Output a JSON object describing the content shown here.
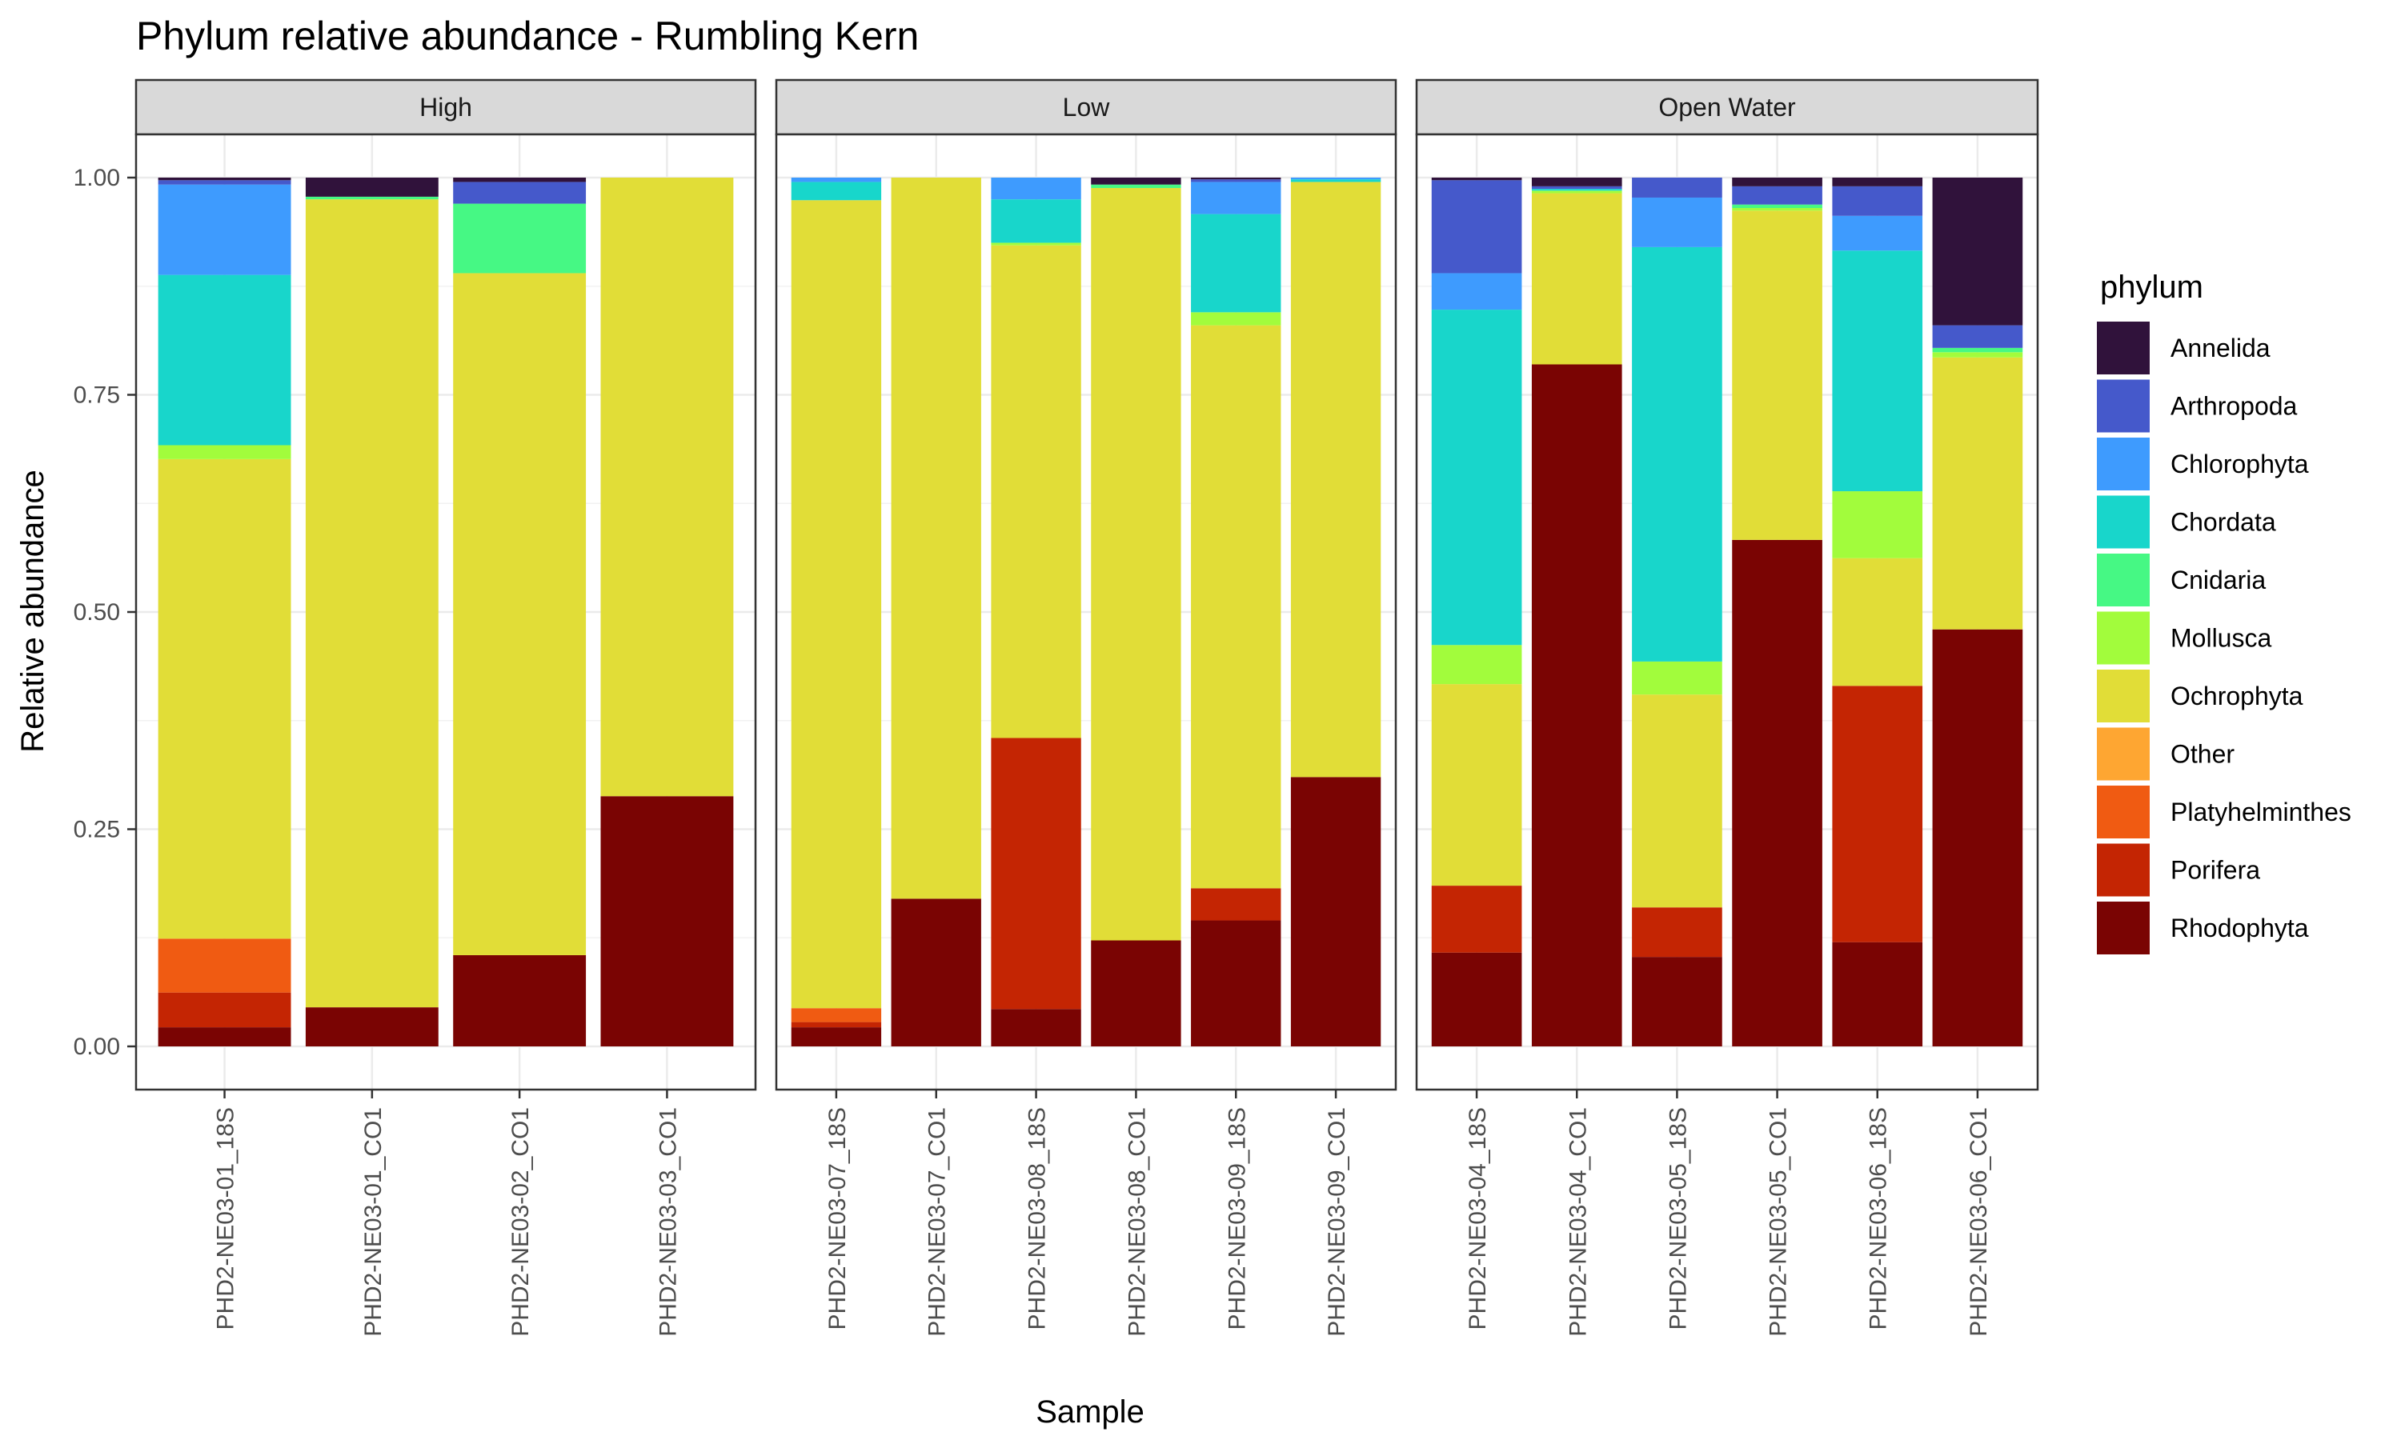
{
  "chart_data": {
    "type": "bar",
    "stacked": true,
    "faceted": true,
    "title": "Phylum relative abundance - Rumbling Kern",
    "xlabel": "Sample",
    "ylabel": "Relative abundance",
    "ylim": [
      0,
      1
    ],
    "yticks": [
      "0.00",
      "0.25",
      "0.50",
      "0.75",
      "1.00"
    ],
    "grid": true,
    "legend": {
      "title": "phylum",
      "position": "right",
      "entries": [
        "Annelida",
        "Arthropoda",
        "Chlorophyta",
        "Chordata",
        "Cnidaria",
        "Mollusca",
        "Ochrophyta",
        "Other",
        "Platyhelminthes",
        "Porifera",
        "Rhodophyta"
      ],
      "colors": [
        "#30123B",
        "#4559CB",
        "#3E9BFE",
        "#18D6CB",
        "#46F884",
        "#A2FC3C",
        "#E1DD37",
        "#FEA632",
        "#F05B12",
        "#C42503",
        "#7A0403"
      ]
    },
    "stack_order": [
      "Rhodophyta",
      "Porifera",
      "Platyhelminthes",
      "Other",
      "Ochrophyta",
      "Mollusca",
      "Cnidaria",
      "Chordata",
      "Chlorophyta",
      "Arthropoda",
      "Annelida"
    ],
    "panels": [
      {
        "label": "High",
        "samples": [
          {
            "name": "PHD2-NE03-01_18S",
            "values": {
              "Rhodophyta": 0.022,
              "Porifera": 0.04,
              "Platyhelminthes": 0.062,
              "Other": 0.0,
              "Ochrophyta": 0.552,
              "Mollusca": 0.016,
              "Cnidaria": 0.0,
              "Chordata": 0.196,
              "Chlorophyta": 0.104,
              "Arthropoda": 0.005,
              "Annelida": 0.003
            }
          },
          {
            "name": "PHD2-NE03-01_CO1",
            "values": {
              "Rhodophyta": 0.045,
              "Porifera": 0.0,
              "Platyhelminthes": 0.0,
              "Other": 0.0,
              "Ochrophyta": 0.93,
              "Mollusca": 0.0,
              "Cnidaria": 0.003,
              "Chordata": 0.0,
              "Chlorophyta": 0.0,
              "Arthropoda": 0.0,
              "Annelida": 0.022
            }
          },
          {
            "name": "PHD2-NE03-02_CO1",
            "values": {
              "Rhodophyta": 0.105,
              "Porifera": 0.0,
              "Platyhelminthes": 0.0,
              "Other": 0.0,
              "Ochrophyta": 0.785,
              "Mollusca": 0.0,
              "Cnidaria": 0.08,
              "Chordata": 0.0,
              "Chlorophyta": 0.0,
              "Arthropoda": 0.025,
              "Annelida": 0.005
            }
          },
          {
            "name": "PHD2-NE03-03_CO1",
            "values": {
              "Rhodophyta": 0.288,
              "Porifera": 0.0,
              "Platyhelminthes": 0.0,
              "Other": 0.0,
              "Ochrophyta": 0.712,
              "Mollusca": 0.0,
              "Cnidaria": 0.0,
              "Chordata": 0.0,
              "Chlorophyta": 0.0,
              "Arthropoda": 0.0,
              "Annelida": 0.0
            }
          }
        ]
      },
      {
        "label": "Low",
        "samples": [
          {
            "name": "PHD2-NE03-07_18S",
            "values": {
              "Rhodophyta": 0.022,
              "Porifera": 0.006,
              "Platyhelminthes": 0.016,
              "Other": 0.0,
              "Ochrophyta": 0.93,
              "Mollusca": 0.0,
              "Cnidaria": 0.0,
              "Chordata": 0.021,
              "Chlorophyta": 0.005,
              "Arthropoda": 0.0,
              "Annelida": 0.0
            }
          },
          {
            "name": "PHD2-NE03-07_CO1",
            "values": {
              "Rhodophyta": 0.17,
              "Porifera": 0.0,
              "Platyhelminthes": 0.0,
              "Other": 0.0,
              "Ochrophyta": 0.83,
              "Mollusca": 0.0,
              "Cnidaria": 0.0,
              "Chordata": 0.0,
              "Chlorophyta": 0.0,
              "Arthropoda": 0.0,
              "Annelida": 0.0
            }
          },
          {
            "name": "PHD2-NE03-08_18S",
            "values": {
              "Rhodophyta": 0.043,
              "Porifera": 0.312,
              "Platyhelminthes": 0.0,
              "Other": 0.0,
              "Ochrophyta": 0.567,
              "Mollusca": 0.003,
              "Cnidaria": 0.0,
              "Chordata": 0.05,
              "Chlorophyta": 0.025,
              "Arthropoda": 0.0,
              "Annelida": 0.0
            }
          },
          {
            "name": "PHD2-NE03-08_CO1",
            "values": {
              "Rhodophyta": 0.122,
              "Porifera": 0.0,
              "Platyhelminthes": 0.0,
              "Other": 0.0,
              "Ochrophyta": 0.866,
              "Mollusca": 0.0,
              "Cnidaria": 0.004,
              "Chordata": 0.0,
              "Chlorophyta": 0.0,
              "Arthropoda": 0.0,
              "Annelida": 0.008
            }
          },
          {
            "name": "PHD2-NE03-09_18S",
            "values": {
              "Rhodophyta": 0.145,
              "Porifera": 0.037,
              "Platyhelminthes": 0.0,
              "Other": 0.0,
              "Ochrophyta": 0.648,
              "Mollusca": 0.015,
              "Cnidaria": 0.0,
              "Chordata": 0.113,
              "Chlorophyta": 0.037,
              "Arthropoda": 0.003,
              "Annelida": 0.002
            }
          },
          {
            "name": "PHD2-NE03-09_CO1",
            "values": {
              "Rhodophyta": 0.31,
              "Porifera": 0.0,
              "Platyhelminthes": 0.0,
              "Other": 0.0,
              "Ochrophyta": 0.685,
              "Mollusca": 0.0,
              "Cnidaria": 0.0,
              "Chordata": 0.003,
              "Chlorophyta": 0.002,
              "Arthropoda": 0.0,
              "Annelida": 0.0
            }
          }
        ]
      },
      {
        "label": "Open Water",
        "samples": [
          {
            "name": "PHD2-NE03-04_18S",
            "values": {
              "Rhodophyta": 0.108,
              "Porifera": 0.077,
              "Platyhelminthes": 0.0,
              "Other": 0.0,
              "Ochrophyta": 0.232,
              "Mollusca": 0.045,
              "Cnidaria": 0.0,
              "Chordata": 0.386,
              "Chlorophyta": 0.042,
              "Arthropoda": 0.107,
              "Annelida": 0.003
            }
          },
          {
            "name": "PHD2-NE03-04_CO1",
            "values": {
              "Rhodophyta": 0.785,
              "Porifera": 0.0,
              "Platyhelminthes": 0.0,
              "Other": 0.0,
              "Ochrophyta": 0.197,
              "Mollusca": 0.003,
              "Cnidaria": 0.0,
              "Chordata": 0.002,
              "Chlorophyta": 0.0,
              "Arthropoda": 0.003,
              "Annelida": 0.01
            }
          },
          {
            "name": "PHD2-NE03-05_18S",
            "values": {
              "Rhodophyta": 0.103,
              "Porifera": 0.057,
              "Platyhelminthes": 0.0,
              "Other": 0.0,
              "Ochrophyta": 0.245,
              "Mollusca": 0.038,
              "Cnidaria": 0.0,
              "Chordata": 0.477,
              "Chlorophyta": 0.057,
              "Arthropoda": 0.023,
              "Annelida": 0.0
            }
          },
          {
            "name": "PHD2-NE03-05_CO1",
            "values": {
              "Rhodophyta": 0.583,
              "Porifera": 0.0,
              "Platyhelminthes": 0.0,
              "Other": 0.0,
              "Ochrophyta": 0.379,
              "Mollusca": 0.003,
              "Cnidaria": 0.004,
              "Chordata": 0.0,
              "Chlorophyta": 0.0,
              "Arthropoda": 0.021,
              "Annelida": 0.01
            }
          },
          {
            "name": "PHD2-NE03-06_18S",
            "values": {
              "Rhodophyta": 0.12,
              "Porifera": 0.295,
              "Platyhelminthes": 0.0,
              "Other": 0.0,
              "Ochrophyta": 0.147,
              "Mollusca": 0.077,
              "Cnidaria": 0.0,
              "Chordata": 0.277,
              "Chlorophyta": 0.04,
              "Arthropoda": 0.034,
              "Annelida": 0.01
            }
          },
          {
            "name": "PHD2-NE03-06_CO1",
            "values": {
              "Rhodophyta": 0.48,
              "Porifera": 0.0,
              "Platyhelminthes": 0.0,
              "Other": 0.0,
              "Ochrophyta": 0.313,
              "Mollusca": 0.006,
              "Cnidaria": 0.005,
              "Chordata": 0.0,
              "Chlorophyta": 0.0,
              "Arthropoda": 0.026,
              "Annelida": 0.17
            }
          }
        ]
      }
    ]
  }
}
